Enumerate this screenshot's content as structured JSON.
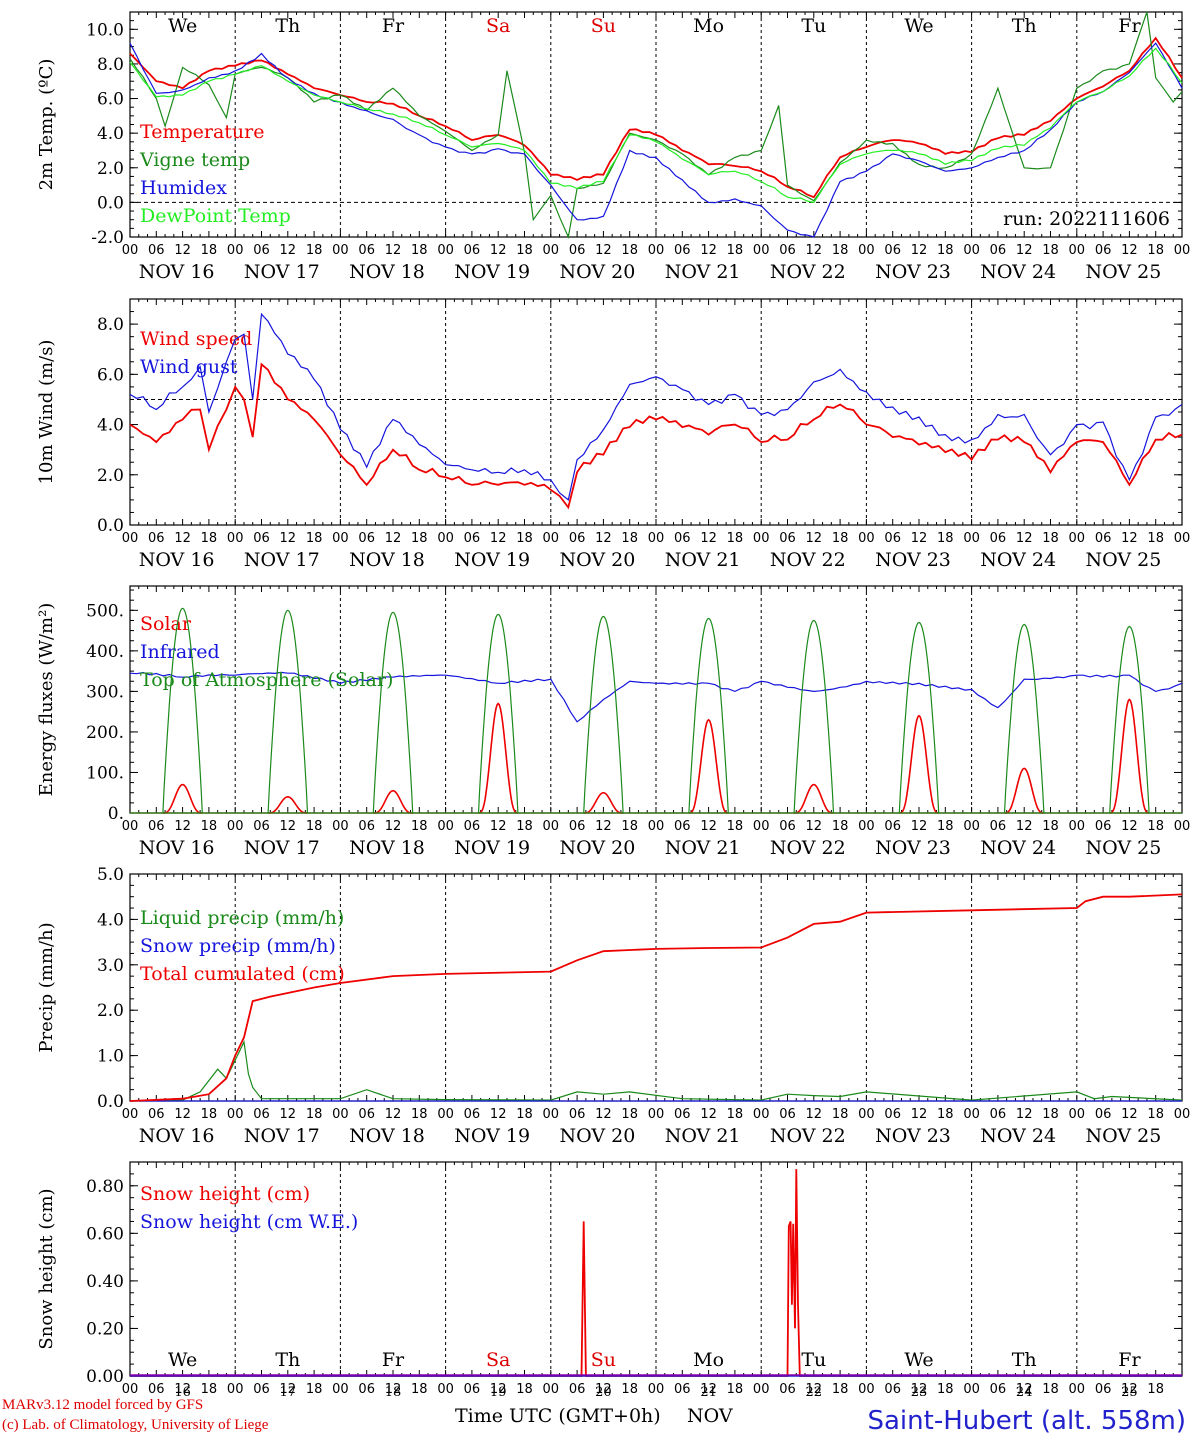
{
  "run_label": "run: 2022111606",
  "days": {
    "weekdays": [
      "We",
      "Th",
      "Fr",
      "Sa",
      "Su",
      "Mo",
      "Tu",
      "We",
      "Th",
      "Fr"
    ],
    "weekday_colors": [
      "#000000",
      "#000000",
      "#000000",
      "#dd0000",
      "#dd0000",
      "#000000",
      "#000000",
      "#000000",
      "#000000",
      "#000000"
    ],
    "dates": [
      "NOV 16",
      "NOV 17",
      "NOV 18",
      "NOV 19",
      "NOV 20",
      "NOV 21",
      "NOV 22",
      "NOV 23",
      "NOV 24",
      "NOV 25"
    ],
    "day_numbers": [
      "16",
      "17",
      "18",
      "19",
      "20",
      "21",
      "22",
      "23",
      "24",
      "25"
    ],
    "hour_ticks": [
      "00",
      "06",
      "12",
      "18"
    ],
    "final_hour_tick": "00"
  },
  "footer": {
    "credit_line1": "MARv3.12 model forced by GFS",
    "credit_line2": "(c) Lab. of Climatology, University of Liege",
    "x_title": "Time UTC (GMT+0h)",
    "month": "NOV",
    "station": "Saint-Hubert (alt. 558m)"
  },
  "colors": {
    "red": "#ee0000",
    "green": "#1a8a1a",
    "blue": "#1515dd",
    "lightgreen": "#22ee22",
    "brown": "#8b4513"
  },
  "chart_data": [
    {
      "type": "line",
      "ylabel": "2m Temp. (ºC)",
      "ylim": [
        -2,
        11
      ],
      "yticks": [
        "-2.0",
        "0.0",
        "2.0",
        "4.0",
        "6.0",
        "8.0",
        "10.0"
      ],
      "ytick_values": [
        -2,
        0,
        2,
        4,
        6,
        8,
        10
      ],
      "dashed_reference": 0,
      "x_unit": "hours since NOV 16 00 UTC",
      "xlim": [
        0,
        240
      ],
      "series": [
        {
          "name": "Temperature",
          "color": "red",
          "x": [
            0,
            6,
            12,
            18,
            24,
            30,
            36,
            42,
            48,
            54,
            60,
            66,
            72,
            78,
            84,
            90,
            96,
            102,
            108,
            114,
            120,
            126,
            132,
            138,
            144,
            150,
            156,
            162,
            168,
            174,
            180,
            186,
            192,
            198,
            204,
            210,
            216,
            222,
            228,
            234,
            240
          ],
          "y": [
            8.6,
            7.0,
            6.6,
            7.6,
            7.9,
            8.2,
            7.4,
            6.6,
            6.2,
            5.8,
            5.7,
            5.0,
            4.4,
            3.6,
            3.9,
            3.3,
            1.6,
            1.3,
            1.6,
            4.2,
            3.9,
            3.0,
            2.2,
            2.1,
            1.8,
            0.9,
            0.3,
            2.6,
            3.2,
            3.6,
            3.4,
            2.8,
            2.9,
            3.7,
            3.9,
            4.7,
            6.0,
            6.7,
            7.6,
            9.5,
            7.2
          ]
        },
        {
          "name": "Vigne temp",
          "color": "green",
          "x": [
            0,
            6,
            8,
            12,
            18,
            22,
            24,
            30,
            36,
            42,
            48,
            54,
            60,
            66,
            72,
            78,
            84,
            86,
            90,
            92,
            96,
            100,
            102,
            108,
            114,
            120,
            126,
            132,
            138,
            144,
            148,
            150,
            156,
            162,
            168,
            174,
            180,
            186,
            192,
            198,
            204,
            210,
            216,
            222,
            228,
            232,
            234,
            238,
            240
          ],
          "y": [
            8.3,
            6.0,
            4.4,
            7.8,
            6.8,
            4.9,
            7.4,
            7.8,
            7.2,
            5.8,
            6.2,
            5.3,
            6.6,
            5.0,
            4.1,
            3.0,
            3.9,
            7.6,
            2.9,
            -1.0,
            0.4,
            -2.0,
            0.8,
            1.1,
            4.0,
            3.6,
            2.8,
            1.6,
            2.6,
            3.0,
            5.6,
            1.0,
            0.1,
            2.3,
            3.6,
            3.4,
            2.2,
            2.0,
            2.8,
            6.6,
            2.0,
            2.0,
            6.6,
            7.6,
            8.0,
            11.0,
            7.2,
            5.8,
            6.4
          ]
        },
        {
          "name": "Humidex",
          "color": "blue",
          "x": [
            0,
            6,
            12,
            18,
            24,
            30,
            36,
            42,
            48,
            54,
            60,
            66,
            72,
            78,
            84,
            90,
            96,
            102,
            108,
            114,
            120,
            126,
            132,
            138,
            144,
            150,
            156,
            162,
            168,
            174,
            180,
            186,
            192,
            198,
            204,
            210,
            216,
            222,
            228,
            234,
            240
          ],
          "y": [
            9.2,
            6.3,
            6.5,
            7.2,
            7.6,
            8.6,
            7.2,
            6.3,
            5.8,
            5.3,
            4.8,
            3.9,
            3.2,
            2.8,
            3.1,
            2.8,
            1.0,
            -1.0,
            -0.8,
            3.0,
            2.6,
            1.3,
            0.0,
            0.2,
            -0.2,
            -1.6,
            -2.0,
            1.2,
            1.8,
            2.8,
            2.4,
            1.8,
            2.0,
            2.6,
            3.0,
            4.2,
            5.8,
            6.4,
            7.5,
            9.2,
            6.6
          ]
        },
        {
          "name": "DewPoint Temp",
          "color": "lightgreen",
          "x": [
            0,
            6,
            12,
            18,
            24,
            30,
            36,
            42,
            48,
            54,
            60,
            66,
            72,
            78,
            84,
            90,
            96,
            102,
            108,
            114,
            120,
            126,
            132,
            138,
            144,
            150,
            156,
            162,
            168,
            174,
            180,
            186,
            192,
            198,
            204,
            210,
            216,
            222,
            228,
            234,
            240
          ],
          "y": [
            8.1,
            6.1,
            6.2,
            7.0,
            7.4,
            7.9,
            7.0,
            6.2,
            5.8,
            5.4,
            5.1,
            4.6,
            3.9,
            3.2,
            3.4,
            3.0,
            1.1,
            0.8,
            1.2,
            3.9,
            3.5,
            2.5,
            1.6,
            1.8,
            1.2,
            0.3,
            0.0,
            2.2,
            2.8,
            3.0,
            2.8,
            2.2,
            2.4,
            3.1,
            3.3,
            4.3,
            5.8,
            6.4,
            7.3,
            8.9,
            6.9
          ]
        }
      ]
    },
    {
      "type": "line",
      "ylabel": "10m Wind (m/s)",
      "ylim": [
        0,
        9
      ],
      "yticks": [
        "0.0",
        "2.0",
        "4.0",
        "6.0",
        "8.0"
      ],
      "ytick_values": [
        0,
        2,
        4,
        6,
        8
      ],
      "dashed_reference": 5,
      "x_unit": "hours since NOV 16 00 UTC",
      "xlim": [
        0,
        240
      ],
      "series": [
        {
          "name": "Wind speed",
          "color": "red",
          "x": [
            0,
            6,
            12,
            16,
            18,
            22,
            24,
            26,
            28,
            30,
            36,
            42,
            48,
            54,
            60,
            66,
            72,
            78,
            84,
            90,
            96,
            100,
            102,
            108,
            114,
            120,
            126,
            132,
            138,
            144,
            150,
            156,
            162,
            168,
            174,
            180,
            186,
            192,
            198,
            204,
            210,
            216,
            222,
            228,
            234,
            240
          ],
          "y": [
            4.0,
            3.3,
            4.2,
            4.6,
            3.0,
            4.6,
            5.5,
            5.0,
            3.5,
            6.4,
            5.0,
            4.2,
            2.8,
            1.6,
            3.0,
            2.2,
            1.9,
            1.6,
            1.6,
            1.6,
            1.4,
            0.7,
            2.1,
            2.8,
            3.9,
            4.2,
            3.9,
            3.6,
            4.0,
            3.3,
            3.4,
            4.2,
            4.8,
            4.0,
            3.5,
            3.2,
            2.9,
            2.6,
            3.4,
            3.3,
            2.1,
            3.3,
            3.3,
            1.6,
            3.4,
            3.6
          ]
        },
        {
          "name": "Wind gust",
          "color": "blue",
          "x": [
            0,
            6,
            12,
            16,
            18,
            22,
            24,
            26,
            28,
            30,
            36,
            42,
            48,
            54,
            60,
            66,
            72,
            78,
            84,
            90,
            96,
            100,
            102,
            108,
            114,
            120,
            126,
            132,
            138,
            144,
            150,
            156,
            162,
            168,
            174,
            180,
            186,
            192,
            198,
            204,
            210,
            216,
            222,
            228,
            234,
            240
          ],
          "y": [
            5.2,
            4.6,
            5.5,
            6.3,
            4.5,
            6.5,
            7.4,
            7.6,
            5.0,
            8.4,
            6.8,
            5.8,
            3.8,
            2.3,
            4.2,
            3.2,
            2.4,
            2.2,
            2.1,
            2.2,
            1.8,
            1.0,
            2.6,
            3.8,
            5.6,
            5.9,
            5.4,
            4.8,
            5.2,
            4.4,
            4.6,
            5.7,
            6.2,
            5.3,
            4.7,
            4.3,
            3.6,
            3.4,
            4.4,
            4.4,
            2.8,
            4.0,
            4.1,
            1.8,
            4.3,
            4.8
          ]
        }
      ]
    },
    {
      "type": "line",
      "ylabel": "Energy fluxes (W/m²)",
      "ylim": [
        0,
        560
      ],
      "yticks": [
        "0.",
        "100.",
        "200.",
        "300.",
        "400.",
        "500."
      ],
      "ytick_values": [
        0,
        100,
        200,
        300,
        400,
        500
      ],
      "x_unit": "hours since NOV 16 00 UTC",
      "xlim": [
        0,
        240
      ],
      "series": [
        {
          "name": "Solar",
          "color": "red",
          "day_peaks": [
            70,
            40,
            55,
            270,
            50,
            230,
            70,
            240,
            110,
            280
          ]
        },
        {
          "name": "Infrared",
          "color": "blue",
          "x": [
            0,
            12,
            24,
            36,
            48,
            60,
            72,
            84,
            96,
            102,
            108,
            114,
            120,
            132,
            138,
            144,
            156,
            162,
            168,
            180,
            192,
            198,
            204,
            216,
            228,
            234,
            240
          ],
          "y": [
            345,
            335,
            340,
            345,
            320,
            335,
            340,
            320,
            330,
            225,
            280,
            325,
            320,
            320,
            300,
            325,
            300,
            310,
            325,
            320,
            305,
            260,
            330,
            340,
            340,
            300,
            320
          ]
        },
        {
          "name": "Top of Atmosphere (Solar)",
          "color": "green",
          "day_peaks": [
            505,
            500,
            495,
            490,
            485,
            480,
            475,
            470,
            465,
            460
          ]
        }
      ]
    },
    {
      "type": "line",
      "ylabel": "Precip (mm/h)",
      "ylim": [
        0,
        5
      ],
      "yticks": [
        "0.0",
        "1.0",
        "2.0",
        "3.0",
        "4.0",
        "5.0"
      ],
      "ytick_values": [
        0,
        1,
        2,
        3,
        4,
        5
      ],
      "x_unit": "hours since NOV 16 00 UTC",
      "xlim": [
        0,
        240
      ],
      "series": [
        {
          "name": "Liquid precip (mm/h)",
          "color": "green",
          "x": [
            0,
            12,
            16,
            20,
            22,
            24,
            26,
            27,
            28,
            30,
            36,
            48,
            54,
            60,
            72,
            96,
            102,
            108,
            114,
            126,
            144,
            150,
            156,
            162,
            168,
            192,
            216,
            220,
            224,
            240
          ],
          "y": [
            0,
            0.02,
            0.2,
            0.7,
            0.5,
            0.9,
            1.3,
            0.6,
            0.3,
            0.05,
            0.05,
            0.05,
            0.25,
            0.05,
            0.03,
            0.02,
            0.2,
            0.15,
            0.2,
            0.05,
            0.02,
            0.15,
            0.12,
            0.1,
            0.2,
            0.02,
            0.2,
            0.05,
            0.1,
            0.02
          ]
        },
        {
          "name": "Snow precip (mm/h)",
          "color": "blue",
          "x": [
            0,
            240
          ],
          "y": [
            0,
            0
          ]
        },
        {
          "name": "Total cumulated (cm)",
          "color": "red",
          "x": [
            0,
            12,
            18,
            22,
            24,
            26,
            28,
            32,
            42,
            48,
            60,
            72,
            96,
            102,
            108,
            120,
            132,
            144,
            150,
            156,
            162,
            168,
            192,
            216,
            218,
            222,
            228,
            240
          ],
          "y": [
            0,
            0.05,
            0.15,
            0.5,
            1.0,
            1.4,
            2.2,
            2.3,
            2.5,
            2.6,
            2.75,
            2.8,
            2.85,
            3.1,
            3.3,
            3.35,
            3.37,
            3.38,
            3.6,
            3.9,
            3.95,
            4.15,
            4.2,
            4.25,
            4.4,
            4.5,
            4.5,
            4.55
          ]
        }
      ]
    },
    {
      "type": "line",
      "ylabel": "Snow height (cm)",
      "ylim": [
        0,
        0.9
      ],
      "yticks": [
        "0.00",
        "0.20",
        "0.40",
        "0.60",
        "0.80"
      ],
      "ytick_values": [
        0,
        0.2,
        0.4,
        0.6,
        0.8
      ],
      "x_unit": "hours since NOV 16 00 UTC",
      "xlim": [
        0,
        240
      ],
      "series": [
        {
          "name": "Snow height (cm)",
          "color": "red",
          "x": [
            0,
            103,
            103.5,
            104,
            150,
            150.3,
            150.7,
            151,
            151.3,
            151.7,
            152,
            152.4,
            152.8,
            240
          ],
          "y": [
            0,
            0,
            0.65,
            0,
            0,
            0.63,
            0.65,
            0.3,
            0.64,
            0.2,
            0.87,
            0.3,
            0,
            0
          ]
        },
        {
          "name": "Snow height (cm W.E.)",
          "color": "blue",
          "x": [
            0,
            240
          ],
          "y": [
            0,
            0
          ]
        }
      ]
    }
  ]
}
